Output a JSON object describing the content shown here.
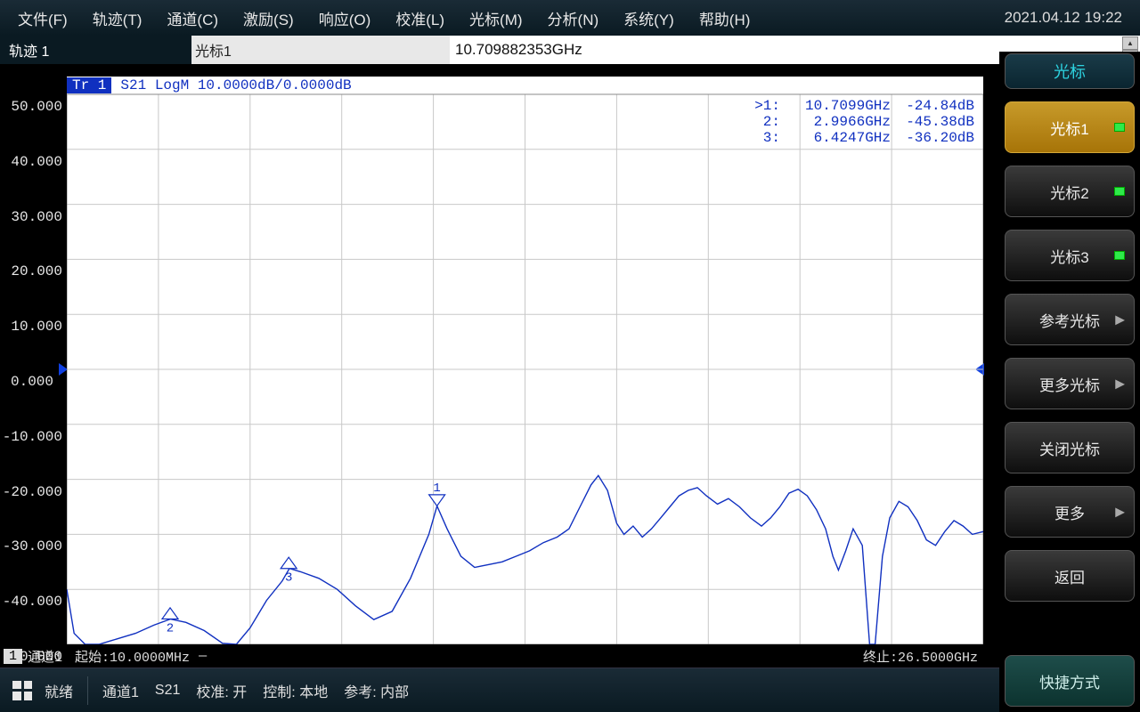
{
  "menubar": {
    "items": [
      "文件(F)",
      "轨迹(T)",
      "通道(C)",
      "激励(S)",
      "响应(O)",
      "校准(L)",
      "光标(M)",
      "分析(N)",
      "系统(Y)",
      "帮助(H)"
    ],
    "timestamp": "2021.04.12 19:22"
  },
  "subheader": {
    "trace_label": "轨迹 1",
    "marker_name": "光标1",
    "marker_value": "10.709882353GHz"
  },
  "softkeys": {
    "header": "光标",
    "items": [
      {
        "label": "光标1",
        "active": true,
        "indicator": true
      },
      {
        "label": "光标2",
        "indicator": true
      },
      {
        "label": "光标3",
        "indicator": true
      },
      {
        "label": "参考光标",
        "arrow": true
      },
      {
        "label": "更多光标",
        "arrow": true
      },
      {
        "label": "关闭光标"
      },
      {
        "label": "更多",
        "arrow": true
      },
      {
        "label": "返回"
      }
    ],
    "shortcut": "快捷方式"
  },
  "chart": {
    "trace_id": "Tr 1",
    "trace_params": "S21 LogM 10.0000dB/0.0000dB",
    "ylim": [
      -50,
      50
    ],
    "ytick_step": 10,
    "ref_level": 0,
    "xlim_hz": [
      10000000,
      26500000000
    ],
    "grid_vdiv": 10,
    "colors": {
      "background": "#ffffff",
      "grid": "#c8c8c8",
      "trace": "#1030c0",
      "text": "#1030c0"
    },
    "markers": [
      {
        "n": 1,
        "active": true,
        "freq_label": "10.7099GHz",
        "val_label": "-24.84dB",
        "freq_hz": 10709900000,
        "val_db": -24.84
      },
      {
        "n": 2,
        "freq_label": "2.9966GHz",
        "val_label": "-45.38dB",
        "freq_hz": 2996600000,
        "val_db": -45.38
      },
      {
        "n": 3,
        "freq_label": "6.4247GHz",
        "val_label": "-36.20dB",
        "freq_hz": 6424700000,
        "val_db": -36.2
      }
    ],
    "ylabels": [
      "50.000",
      "40.000",
      "30.000",
      "20.000",
      "10.000",
      "0.000",
      "-10.000",
      "-20.000",
      "-30.000",
      "-40.000",
      "-50.000"
    ],
    "bottom": {
      "channel_badge": "1",
      "channel": "通道1",
      "start": "起始:10.0000MHz",
      "stop": "终止:26.5000GHz"
    },
    "trace_points": [
      [
        0.0,
        -40.0
      ],
      [
        0.008,
        -48.0
      ],
      [
        0.02,
        -50.0
      ],
      [
        0.035,
        -50.0
      ],
      [
        0.055,
        -49.0
      ],
      [
        0.075,
        -48.0
      ],
      [
        0.095,
        -46.5
      ],
      [
        0.113,
        -45.4
      ],
      [
        0.13,
        -46.0
      ],
      [
        0.15,
        -47.5
      ],
      [
        0.17,
        -49.8
      ],
      [
        0.185,
        -50.0
      ],
      [
        0.2,
        -47.0
      ],
      [
        0.218,
        -42.0
      ],
      [
        0.235,
        -38.5
      ],
      [
        0.243,
        -36.2
      ],
      [
        0.255,
        -36.8
      ],
      [
        0.275,
        -38.0
      ],
      [
        0.295,
        -40.0
      ],
      [
        0.315,
        -43.0
      ],
      [
        0.335,
        -45.5
      ],
      [
        0.355,
        -44.0
      ],
      [
        0.375,
        -38.0
      ],
      [
        0.395,
        -30.0
      ],
      [
        0.404,
        -24.84
      ],
      [
        0.415,
        -29.0
      ],
      [
        0.43,
        -34.0
      ],
      [
        0.445,
        -36.0
      ],
      [
        0.46,
        -35.5
      ],
      [
        0.475,
        -35.0
      ],
      [
        0.49,
        -34.0
      ],
      [
        0.505,
        -33.0
      ],
      [
        0.52,
        -31.5
      ],
      [
        0.535,
        -30.5
      ],
      [
        0.548,
        -29.0
      ],
      [
        0.56,
        -25.0
      ],
      [
        0.572,
        -21.0
      ],
      [
        0.58,
        -19.3
      ],
      [
        0.59,
        -22.0
      ],
      [
        0.6,
        -28.0
      ],
      [
        0.608,
        -30.0
      ],
      [
        0.618,
        -28.5
      ],
      [
        0.628,
        -30.5
      ],
      [
        0.638,
        -29.0
      ],
      [
        0.648,
        -27.0
      ],
      [
        0.658,
        -25.0
      ],
      [
        0.668,
        -23.0
      ],
      [
        0.678,
        -22.0
      ],
      [
        0.688,
        -21.5
      ],
      [
        0.698,
        -23.0
      ],
      [
        0.71,
        -24.5
      ],
      [
        0.722,
        -23.5
      ],
      [
        0.734,
        -25.0
      ],
      [
        0.746,
        -27.0
      ],
      [
        0.758,
        -28.5
      ],
      [
        0.768,
        -27.0
      ],
      [
        0.778,
        -25.0
      ],
      [
        0.788,
        -22.5
      ],
      [
        0.798,
        -21.8
      ],
      [
        0.808,
        -23.0
      ],
      [
        0.818,
        -25.5
      ],
      [
        0.828,
        -29.0
      ],
      [
        0.836,
        -34.0
      ],
      [
        0.842,
        -36.5
      ],
      [
        0.85,
        -33.0
      ],
      [
        0.858,
        -29.0
      ],
      [
        0.868,
        -32.0
      ],
      [
        0.876,
        -50.0
      ],
      [
        0.882,
        -50.0
      ],
      [
        0.89,
        -34.0
      ],
      [
        0.898,
        -27.0
      ],
      [
        0.908,
        -24.0
      ],
      [
        0.918,
        -25.0
      ],
      [
        0.928,
        -27.5
      ],
      [
        0.938,
        -31.0
      ],
      [
        0.948,
        -32.0
      ],
      [
        0.958,
        -29.5
      ],
      [
        0.968,
        -27.5
      ],
      [
        0.978,
        -28.5
      ],
      [
        0.988,
        -30.0
      ],
      [
        1.0,
        -29.5
      ]
    ]
  },
  "statusbar": {
    "ready": "就绪",
    "segments": [
      "通道1",
      "S21",
      "校准: 开",
      "控制: 本地",
      "参考: 内部"
    ]
  }
}
